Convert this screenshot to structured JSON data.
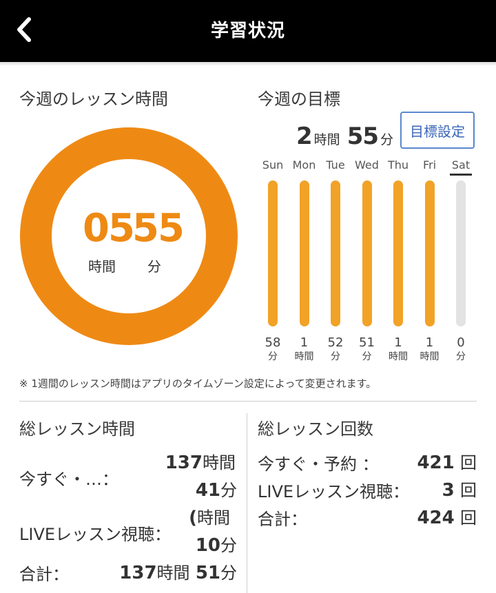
{
  "header": {
    "title": "学習状況",
    "back_icon": "chevron-left-icon"
  },
  "weekly_time": {
    "title": "今週のレッスン時間",
    "hours": "05",
    "minutes": "55",
    "hours_unit": "時間",
    "minutes_unit": "分",
    "ring_color": "#ee8a14"
  },
  "weekly_goal": {
    "title": "今週の目標",
    "hours": "2",
    "hours_unit": "時間",
    "minutes": "55",
    "minutes_unit": "分",
    "button_label": "目標設定",
    "bar_color": "#f2a226",
    "track_color": "#e3e3e3",
    "days": [
      {
        "label": "Sun",
        "value": "58",
        "unit": "分",
        "fill": 1.0,
        "current": false
      },
      {
        "label": "Mon",
        "value": "1",
        "unit": "時間",
        "fill": 1.0,
        "current": false
      },
      {
        "label": "Tue",
        "value": "52",
        "unit": "分",
        "fill": 1.0,
        "current": false
      },
      {
        "label": "Wed",
        "value": "51",
        "unit": "分",
        "fill": 1.0,
        "current": false
      },
      {
        "label": "Thu",
        "value": "1",
        "unit": "時間",
        "fill": 1.0,
        "current": false
      },
      {
        "label": "Fri",
        "value": "1",
        "unit": "時間",
        "fill": 1.0,
        "current": false
      },
      {
        "label": "Sat",
        "value": "0",
        "unit": "分",
        "fill": 0.0,
        "current": true
      }
    ]
  },
  "note": "※ 1週間のレッスン時間はアプリのタイムゾーン設定によって変更されます。",
  "total_time": {
    "title": "総レッスン時間",
    "rows": [
      {
        "label": "今すぐ・…：",
        "line1_num": "137",
        "line1_unit": "時間",
        "line2_num": "41",
        "line2_unit": "分"
      },
      {
        "label": "LIVEレッスン視聴：",
        "line1_num": "(",
        "line1_unit": "時間",
        "line2_num": "10",
        "line2_unit": "分"
      }
    ],
    "total": {
      "label": "合計：",
      "hours": "137",
      "hours_unit": "時間",
      "minutes": "51",
      "minutes_unit": "分"
    }
  },
  "total_count": {
    "title": "総レッスン回数",
    "rows": [
      {
        "label": "今すぐ・予約 ：",
        "num": "421",
        "unit": "回"
      },
      {
        "label": "LIVEレッスン視聴：",
        "num": "3",
        "unit": "回"
      },
      {
        "label": "合計：",
        "num": "424",
        "unit": "回"
      }
    ]
  }
}
